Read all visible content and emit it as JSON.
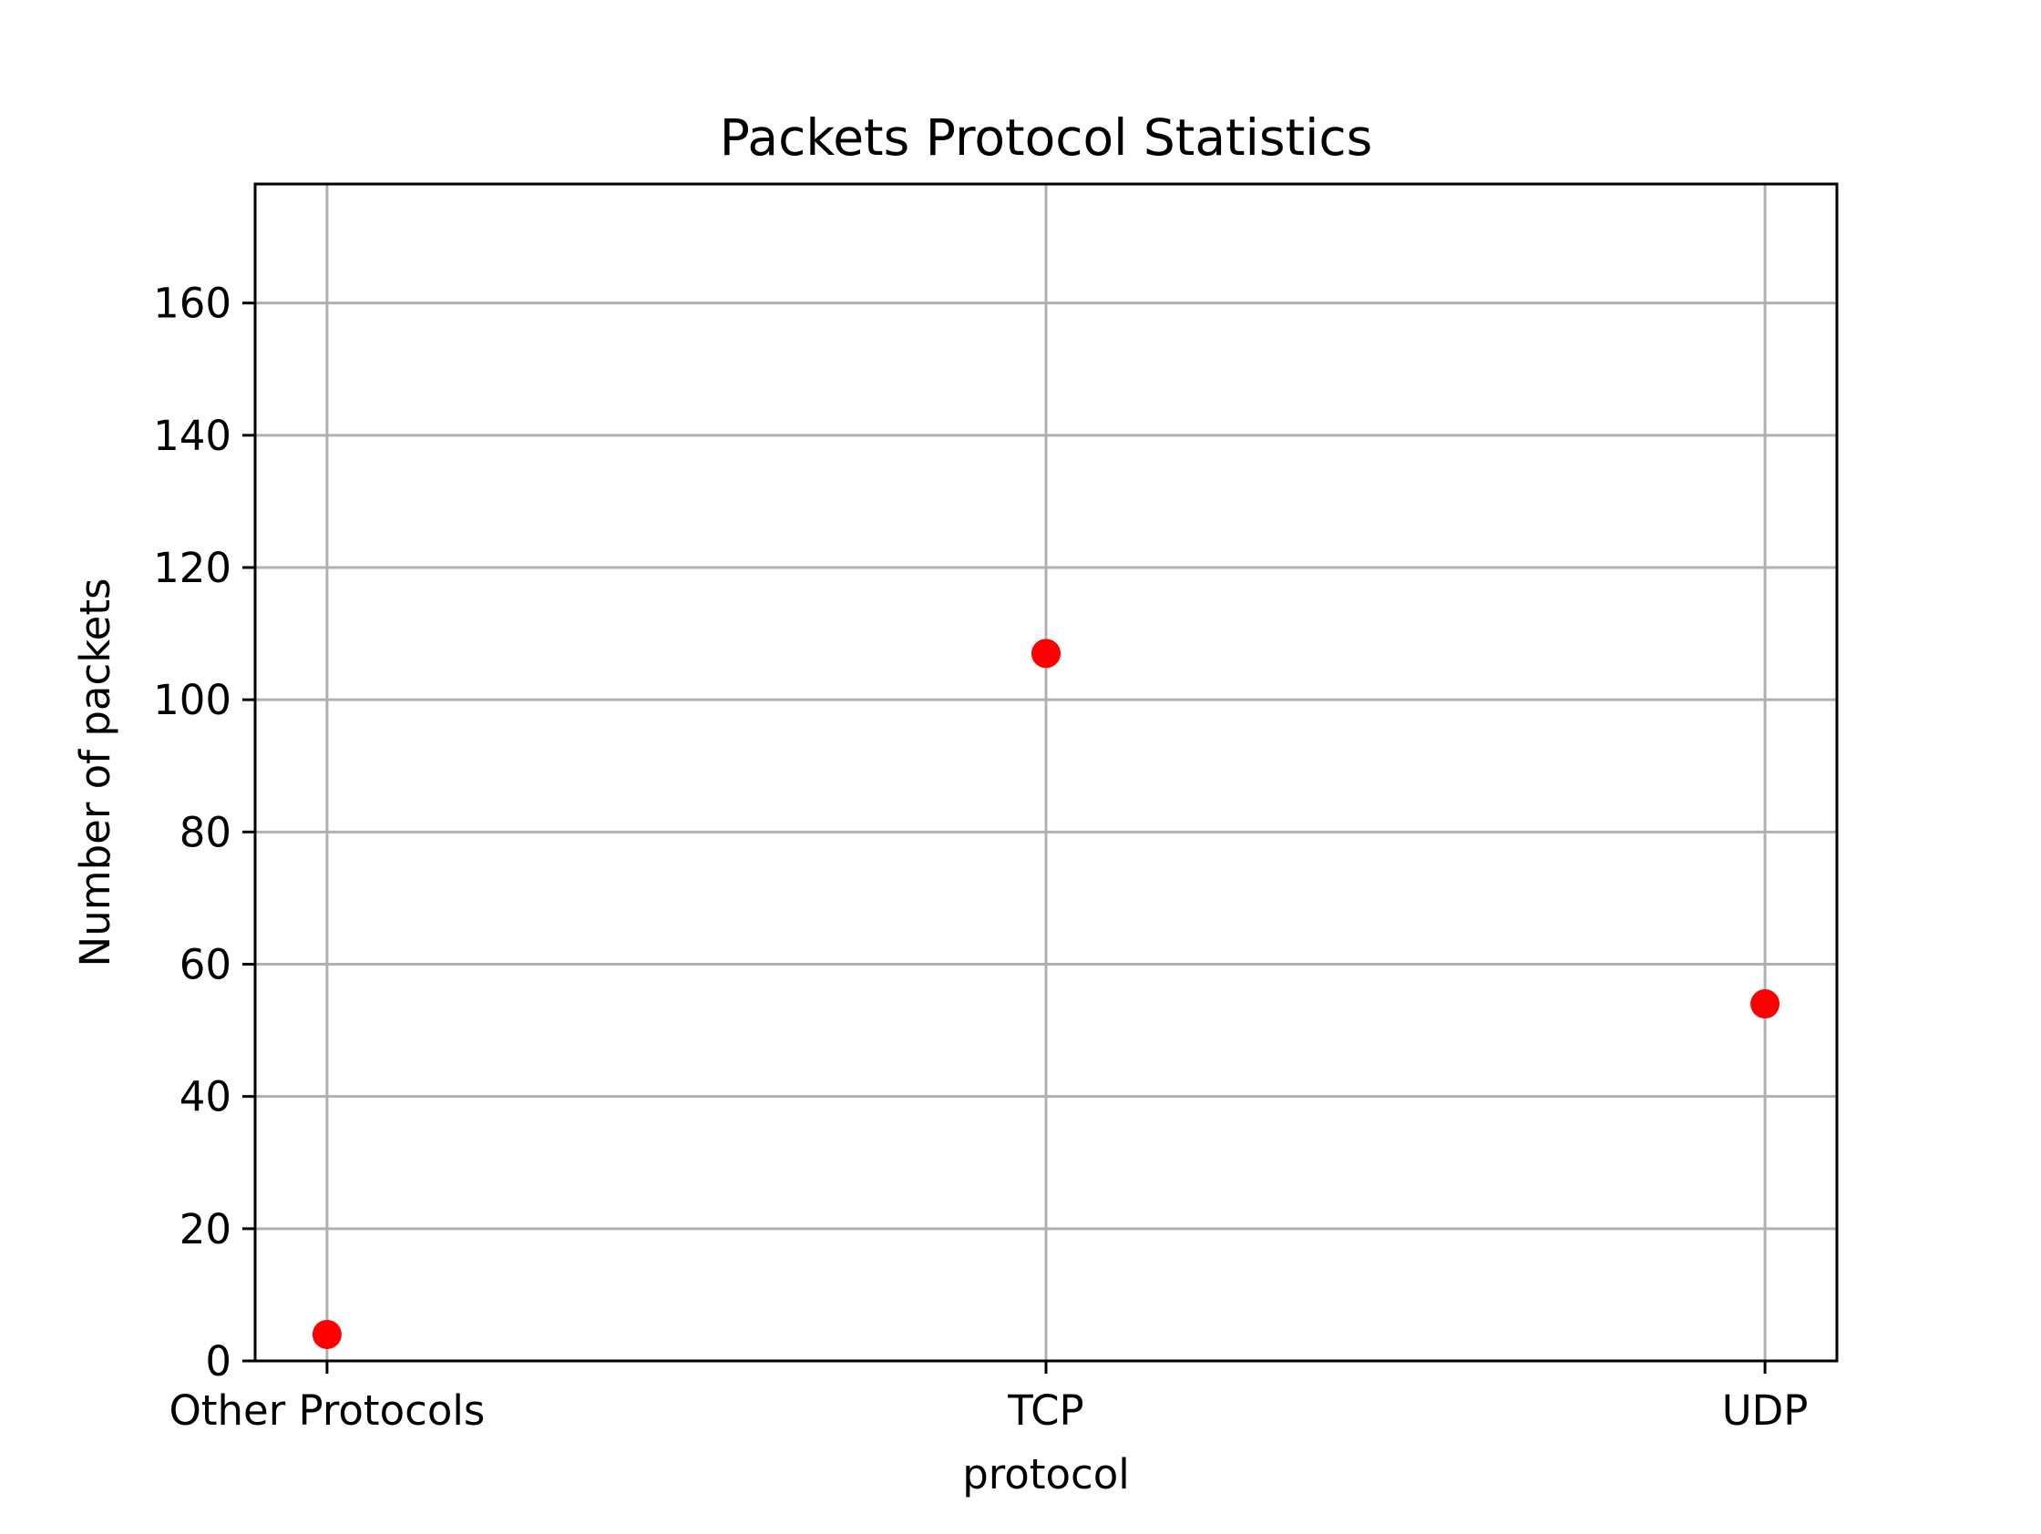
{
  "chart_data": {
    "type": "scatter",
    "title": "Packets Protocol Statistics",
    "xlabel": "protocol",
    "ylabel": "Number of packets",
    "categories": [
      "Other Protocols",
      "TCP",
      "UDP"
    ],
    "values": [
      4,
      107,
      54
    ],
    "ylim": [
      0,
      178
    ],
    "yticks": [
      0,
      20,
      40,
      60,
      80,
      100,
      120,
      140,
      160
    ],
    "grid": true,
    "marker_color": "#ff0000"
  }
}
